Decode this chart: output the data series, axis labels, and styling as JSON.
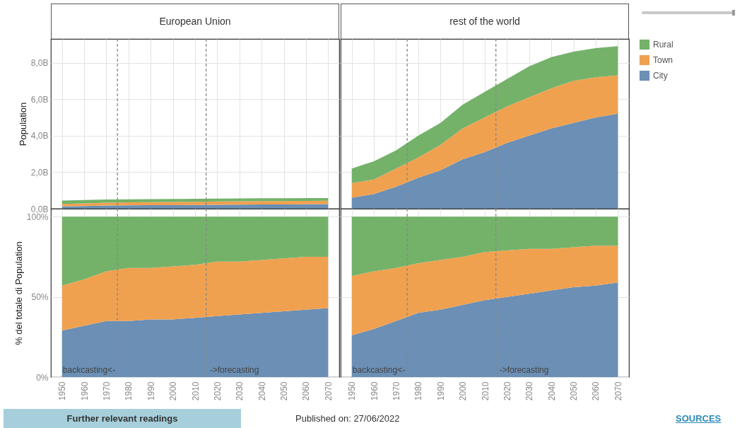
{
  "chart_data": [
    {
      "type": "area",
      "title": "European Union",
      "ylabel": "Population",
      "stacked": true,
      "x": [
        1950,
        1960,
        1970,
        1980,
        1990,
        2000,
        2010,
        2020,
        2030,
        2040,
        2050,
        2060,
        2070
      ],
      "xlim": [
        1945,
        2075
      ],
      "xticks": [
        1950,
        1960,
        1970,
        1980,
        1990,
        2000,
        2010,
        2020,
        2030,
        2040,
        2050,
        2060,
        2070
      ],
      "ylim": [
        0,
        9.3
      ],
      "yticks": [
        {
          "value": 0,
          "label": "0,0B"
        },
        {
          "value": 2,
          "label": "2,0B"
        },
        {
          "value": 4,
          "label": "4,0B"
        },
        {
          "value": 6,
          "label": "6,0B"
        },
        {
          "value": 8,
          "label": "8,0B"
        }
      ],
      "tick_labels": "y",
      "grid": true,
      "legend": false,
      "series": [
        {
          "color": "#6b8fb5",
          "values": [
            0.13,
            0.15,
            0.17,
            0.18,
            0.19,
            0.19,
            0.2,
            0.21,
            0.22,
            0.23,
            0.23,
            0.24,
            0.25
          ]
        },
        {
          "color": "#f0a150",
          "values": [
            0.13,
            0.14,
            0.16,
            0.17,
            0.17,
            0.18,
            0.18,
            0.19,
            0.19,
            0.19,
            0.19,
            0.19,
            0.19
          ]
        },
        {
          "color": "#74b26a",
          "values": [
            0.19,
            0.18,
            0.17,
            0.16,
            0.16,
            0.16,
            0.16,
            0.15,
            0.15,
            0.15,
            0.15,
            0.15,
            0.14
          ]
        }
      ],
      "ref_lines": [
        {
          "axis": "x",
          "value": 1975,
          "color": "#888888",
          "line_style": "dashed"
        },
        {
          "axis": "x",
          "value": 2015,
          "color": "#888888",
          "line_style": "dashed"
        }
      ]
    },
    {
      "type": "area",
      "title": "rest of the world",
      "stacked": true,
      "x": [
        1950,
        1960,
        1970,
        1980,
        1990,
        2000,
        2010,
        2020,
        2030,
        2040,
        2050,
        2060,
        2070
      ],
      "xlim": [
        1945,
        2075
      ],
      "xticks": [
        1950,
        1960,
        1970,
        1980,
        1990,
        2000,
        2010,
        2020,
        2030,
        2040,
        2050,
        2060,
        2070
      ],
      "ylim": [
        0,
        9.3
      ],
      "yticks": [
        0,
        2,
        4,
        6,
        8
      ],
      "tick_labels": false,
      "grid": true,
      "legend": "right",
      "series": [
        {
          "name": "City",
          "color": "#6b8fb5",
          "values": [
            0.6,
            0.8,
            1.2,
            1.7,
            2.1,
            2.7,
            3.1,
            3.6,
            4.0,
            4.4,
            4.7,
            5.0,
            5.2
          ]
        },
        {
          "name": "Town",
          "color": "#f0a150",
          "values": [
            0.8,
            0.8,
            1.0,
            1.1,
            1.4,
            1.7,
            1.9,
            2.0,
            2.1,
            2.2,
            2.3,
            2.2,
            2.1
          ]
        },
        {
          "name": "Rural",
          "color": "#74b26a",
          "values": [
            0.8,
            1.0,
            1.0,
            1.2,
            1.2,
            1.3,
            1.4,
            1.5,
            1.7,
            1.7,
            1.6,
            1.6,
            1.6
          ]
        }
      ],
      "ref_lines": [
        {
          "axis": "x",
          "value": 1975,
          "color": "#888888",
          "line_style": "dashed"
        },
        {
          "axis": "x",
          "value": 2015,
          "color": "#888888",
          "line_style": "dashed"
        }
      ]
    },
    {
      "type": "area",
      "ylabel": "% del totale di Population",
      "stacked": true,
      "x": [
        1950,
        1960,
        1970,
        1980,
        1990,
        2000,
        2010,
        2020,
        2030,
        2040,
        2050,
        2060,
        2070
      ],
      "xlim": [
        1945,
        2075
      ],
      "xticks": [
        1950,
        1960,
        1970,
        1980,
        1990,
        2000,
        2010,
        2020,
        2030,
        2040,
        2050,
        2060,
        2070
      ],
      "ylim": [
        0,
        105
      ],
      "yticks": [
        {
          "value": 0,
          "label": "0%"
        },
        {
          "value": 50,
          "label": "50%"
        },
        {
          "value": 100,
          "label": "100%"
        }
      ],
      "grid": true,
      "legend": false,
      "series": [
        {
          "color": "#6b8fb5",
          "values": [
            29,
            32,
            35,
            35,
            36,
            36,
            37,
            38,
            39,
            40,
            41,
            42,
            43
          ]
        },
        {
          "color": "#f0a150",
          "values": [
            28,
            29,
            31,
            33,
            32,
            33,
            33,
            34,
            33,
            33,
            33,
            33,
            32
          ]
        },
        {
          "color": "#74b26a",
          "values": [
            43,
            39,
            34,
            32,
            32,
            31,
            30,
            28,
            28,
            27,
            26,
            25,
            25
          ]
        }
      ],
      "ref_lines": [
        {
          "axis": "x",
          "value": 1975,
          "label": "backcasting<-",
          "color": "#888888",
          "line_style": "dashed"
        },
        {
          "axis": "x",
          "value": 2015,
          "label": "->forecasting",
          "color": "#888888",
          "line_style": "dashed"
        }
      ]
    },
    {
      "type": "area",
      "stacked": true,
      "x": [
        1950,
        1960,
        1970,
        1980,
        1990,
        2000,
        2010,
        2020,
        2030,
        2040,
        2050,
        2060,
        2070
      ],
      "xlim": [
        1945,
        2075
      ],
      "xticks": [
        1950,
        1960,
        1970,
        1980,
        1990,
        2000,
        2010,
        2020,
        2030,
        2040,
        2050,
        2060,
        2070
      ],
      "ylim": [
        0,
        105
      ],
      "yticks": [
        0,
        50,
        100
      ],
      "tick_labels": "x",
      "grid": true,
      "legend": false,
      "series": [
        {
          "color": "#6b8fb5",
          "values": [
            26,
            30,
            35,
            40,
            42,
            45,
            48,
            50,
            52,
            54,
            56,
            57,
            59
          ]
        },
        {
          "color": "#f0a150",
          "values": [
            37,
            36,
            33,
            31,
            31,
            30,
            30,
            29,
            28,
            26,
            25,
            25,
            23
          ]
        },
        {
          "color": "#74b26a",
          "values": [
            37,
            34,
            32,
            29,
            27,
            25,
            22,
            21,
            20,
            20,
            19,
            18,
            18
          ]
        }
      ],
      "ref_lines": [
        {
          "axis": "x",
          "value": 1975,
          "label": "backcasting<-",
          "color": "#888888",
          "line_style": "dashed"
        },
        {
          "axis": "x",
          "value": 2015,
          "label": "->forecasting",
          "color": "#888888",
          "line_style": "dashed"
        }
      ]
    },
    {
      "type": "other",
      "annotations": [
        "Further relevant readings",
        "Published on: 27/06/2022",
        "SOURCES"
      ]
    }
  ]
}
